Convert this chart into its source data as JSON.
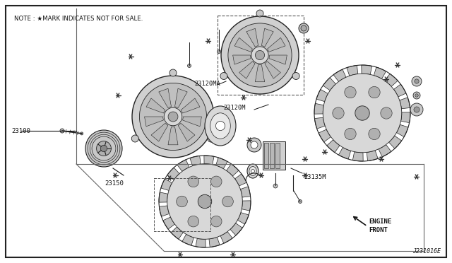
{
  "bg_color": "#ffffff",
  "border_color": "#333333",
  "line_color": "#222222",
  "text_color": "#111111",
  "gray_fill": "#c8c8c8",
  "light_gray": "#e0e0e0",
  "dark_gray": "#888888",
  "note_text": "NOTE : ★MARK INDICATES NOT FOR SALE.",
  "label_23100": "23100",
  "label_23150": "23150",
  "label_23120MA": "23120MA",
  "label_23120M": "23120M",
  "label_23135M": "23135M",
  "diagram_id": "J231016E",
  "engine_front_line1": "ENGINE",
  "engine_front_line2": "FRONT",
  "fig_width": 6.4,
  "fig_height": 3.72,
  "dpi": 100
}
